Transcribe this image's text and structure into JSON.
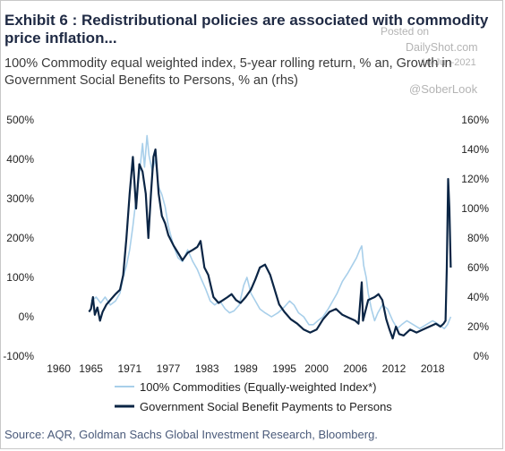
{
  "header": {
    "title": "Exhibit 6 : Redistributional policies are associated with commodity price inflation...",
    "subtitle": "100% Commodity equal weighted index, 5-year rolling return, % an, Growth in Government Social Benefits to Persons, % an (rhs)"
  },
  "watermark": {
    "posted_on": "Posted on",
    "site": "DailyShot.com",
    "date": "16-Jun-2021",
    "handle": "@SoberLook"
  },
  "footer": {
    "source": "Source: AQR, Goldman Sachs Global Investment Research, Bloomberg."
  },
  "chart_data": {
    "type": "line",
    "grid": false,
    "legend_position": "bottom-left",
    "x_ticks": [
      "1960",
      "1965",
      "1971",
      "1977",
      "1983",
      "1989",
      "1995",
      "2000",
      "2006",
      "2012",
      "2018"
    ],
    "x_range": [
      1959.5,
      2022.0
    ],
    "y_left": {
      "range": [
        -100,
        500
      ],
      "ticks": [
        "-100%",
        "0%",
        "100%",
        "200%",
        "300%",
        "400%",
        "500%"
      ],
      "tick_values": [
        -100,
        0,
        100,
        200,
        300,
        400,
        500
      ]
    },
    "y_right": {
      "range": [
        0,
        160
      ],
      "ticks": [
        "0%",
        "20%",
        "40%",
        "60%",
        "80%",
        "100%",
        "120%",
        "140%",
        "160%"
      ],
      "tick_values": [
        0,
        20,
        40,
        60,
        80,
        100,
        120,
        140,
        160
      ]
    },
    "series": [
      {
        "name": "100% Commodities (Equally-weighted Index*)",
        "axis": "left",
        "color": "#a8cfea",
        "points": [
          [
            1965.0,
            40
          ],
          [
            1965.8,
            50
          ],
          [
            1966.5,
            35
          ],
          [
            1967.2,
            50
          ],
          [
            1968.0,
            30
          ],
          [
            1968.8,
            40
          ],
          [
            1969.5,
            60
          ],
          [
            1970.0,
            100
          ],
          [
            1970.5,
            130
          ],
          [
            1971.0,
            170
          ],
          [
            1971.5,
            230
          ],
          [
            1972.0,
            300
          ],
          [
            1972.5,
            360
          ],
          [
            1973.0,
            440
          ],
          [
            1973.3,
            380
          ],
          [
            1973.7,
            460
          ],
          [
            1974.0,
            410
          ],
          [
            1974.5,
            370
          ],
          [
            1975.0,
            400
          ],
          [
            1975.5,
            330
          ],
          [
            1976.0,
            310
          ],
          [
            1976.5,
            280
          ],
          [
            1977.0,
            230
          ],
          [
            1977.8,
            180
          ],
          [
            1978.5,
            150
          ],
          [
            1979.2,
            140
          ],
          [
            1980.0,
            170
          ],
          [
            1980.8,
            140
          ],
          [
            1981.5,
            120
          ],
          [
            1982.0,
            100
          ],
          [
            1982.8,
            70
          ],
          [
            1983.5,
            40
          ],
          [
            1984.2,
            30
          ],
          [
            1985.0,
            40
          ],
          [
            1985.8,
            20
          ],
          [
            1986.5,
            10
          ],
          [
            1987.2,
            15
          ],
          [
            1988.0,
            30
          ],
          [
            1988.7,
            80
          ],
          [
            1989.2,
            100
          ],
          [
            1989.8,
            60
          ],
          [
            1990.5,
            40
          ],
          [
            1991.2,
            20
          ],
          [
            1992.0,
            10
          ],
          [
            1993.0,
            0
          ],
          [
            1994.0,
            10
          ],
          [
            1995.0,
            25
          ],
          [
            1995.8,
            40
          ],
          [
            1996.5,
            30
          ],
          [
            1997.2,
            10
          ],
          [
            1998.0,
            0
          ],
          [
            1998.8,
            -20
          ],
          [
            1999.5,
            -20
          ],
          [
            2000.2,
            -10
          ],
          [
            2001.0,
            0
          ],
          [
            2001.8,
            20
          ],
          [
            2002.5,
            40
          ],
          [
            2003.2,
            60
          ],
          [
            2004.0,
            90
          ],
          [
            2004.8,
            110
          ],
          [
            2005.5,
            130
          ],
          [
            2006.2,
            150
          ],
          [
            2006.7,
            170
          ],
          [
            2007.0,
            180
          ],
          [
            2007.3,
            130
          ],
          [
            2007.7,
            100
          ],
          [
            2008.0,
            60
          ],
          [
            2008.5,
            20
          ],
          [
            2009.0,
            -10
          ],
          [
            2009.5,
            10
          ],
          [
            2010.2,
            30
          ],
          [
            2011.0,
            20
          ],
          [
            2011.8,
            -10
          ],
          [
            2012.5,
            -30
          ],
          [
            2013.2,
            -20
          ],
          [
            2014.0,
            -10
          ],
          [
            2015.0,
            -20
          ],
          [
            2016.0,
            -30
          ],
          [
            2017.0,
            -20
          ],
          [
            2018.0,
            -10
          ],
          [
            2019.0,
            -20
          ],
          [
            2019.8,
            -30
          ],
          [
            2020.3,
            -20
          ],
          [
            2020.8,
            0
          ]
        ]
      },
      {
        "name": "Government Social Benefit Payments to Persons",
        "axis": "right",
        "color": "#0b2545",
        "points": [
          [
            1964.7,
            30
          ],
          [
            1965.0,
            32
          ],
          [
            1965.3,
            40
          ],
          [
            1965.6,
            28
          ],
          [
            1966.0,
            33
          ],
          [
            1966.4,
            24
          ],
          [
            1966.8,
            30
          ],
          [
            1967.4,
            35
          ],
          [
            1968.0,
            38
          ],
          [
            1968.8,
            42
          ],
          [
            1969.5,
            45
          ],
          [
            1970.0,
            55
          ],
          [
            1970.5,
            80
          ],
          [
            1971.0,
            110
          ],
          [
            1971.5,
            135
          ],
          [
            1972.0,
            100
          ],
          [
            1972.5,
            130
          ],
          [
            1973.0,
            125
          ],
          [
            1973.5,
            110
          ],
          [
            1973.9,
            80
          ],
          [
            1974.3,
            110
          ],
          [
            1974.7,
            135
          ],
          [
            1975.0,
            140
          ],
          [
            1975.5,
            110
          ],
          [
            1976.0,
            95
          ],
          [
            1976.5,
            90
          ],
          [
            1977.0,
            82
          ],
          [
            1977.8,
            75
          ],
          [
            1978.5,
            70
          ],
          [
            1979.2,
            65
          ],
          [
            1980.0,
            70
          ],
          [
            1980.8,
            72
          ],
          [
            1981.5,
            74
          ],
          [
            1982.0,
            78
          ],
          [
            1982.6,
            60
          ],
          [
            1983.2,
            55
          ],
          [
            1984.0,
            40
          ],
          [
            1984.8,
            36
          ],
          [
            1985.5,
            38
          ],
          [
            1986.2,
            40
          ],
          [
            1986.8,
            42
          ],
          [
            1987.5,
            38
          ],
          [
            1988.2,
            36
          ],
          [
            1989.0,
            40
          ],
          [
            1989.8,
            45
          ],
          [
            1990.5,
            52
          ],
          [
            1991.2,
            60
          ],
          [
            1992.0,
            62
          ],
          [
            1992.8,
            55
          ],
          [
            1993.5,
            45
          ],
          [
            1994.2,
            35
          ],
          [
            1995.0,
            30
          ],
          [
            1996.0,
            25
          ],
          [
            1997.0,
            22
          ],
          [
            1998.0,
            18
          ],
          [
            1999.0,
            16
          ],
          [
            2000.0,
            18
          ],
          [
            2001.0,
            25
          ],
          [
            2002.0,
            30
          ],
          [
            2003.0,
            32
          ],
          [
            2004.0,
            28
          ],
          [
            2005.0,
            26
          ],
          [
            2006.0,
            24
          ],
          [
            2006.5,
            22
          ],
          [
            2007.0,
            50
          ],
          [
            2007.2,
            24
          ],
          [
            2008.0,
            38
          ],
          [
            2009.0,
            40
          ],
          [
            2009.6,
            42
          ],
          [
            2010.2,
            38
          ],
          [
            2010.8,
            25
          ],
          [
            2011.3,
            18
          ],
          [
            2011.8,
            12
          ],
          [
            2012.3,
            20
          ],
          [
            2012.8,
            15
          ],
          [
            2013.5,
            14
          ],
          [
            2014.5,
            18
          ],
          [
            2015.5,
            16
          ],
          [
            2016.5,
            18
          ],
          [
            2017.5,
            20
          ],
          [
            2018.5,
            22
          ],
          [
            2019.2,
            20
          ],
          [
            2019.7,
            22
          ],
          [
            2020.0,
            24
          ],
          [
            2020.2,
            60
          ],
          [
            2020.4,
            120
          ],
          [
            2020.6,
            100
          ],
          [
            2020.8,
            60
          ]
        ]
      }
    ]
  }
}
